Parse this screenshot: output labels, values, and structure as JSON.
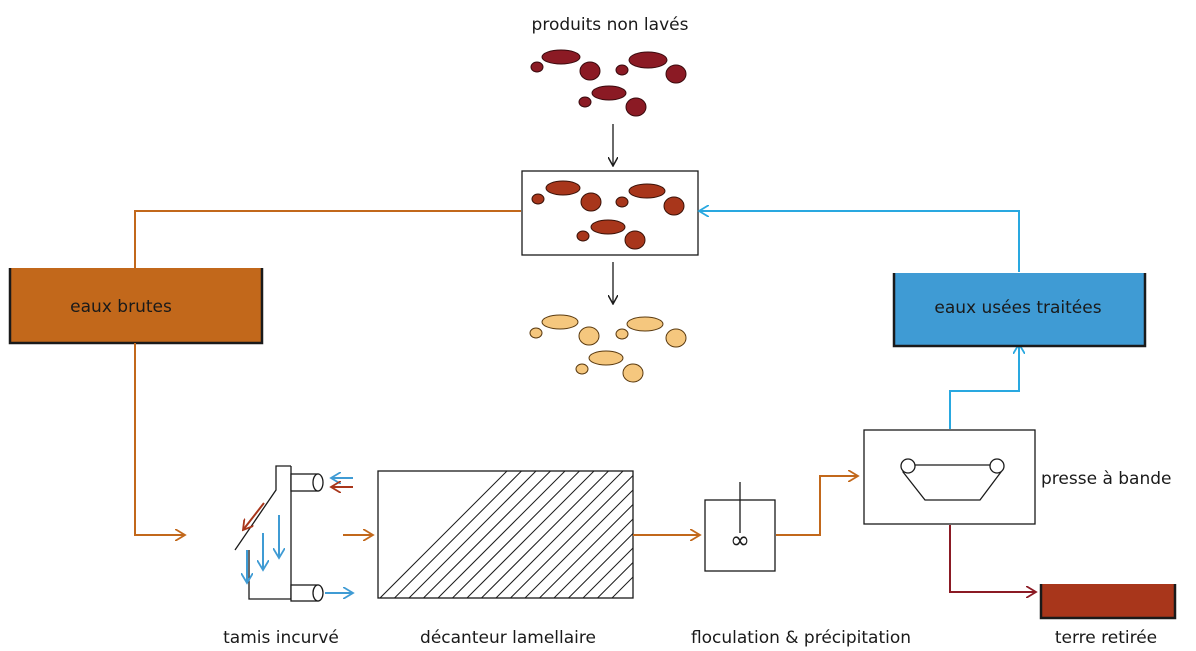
{
  "labels": {
    "unwashed_products": "produits non lavés",
    "raw_water": "eaux brutes",
    "treated_wastewater": "eaux usées traitées",
    "curved_screen": "tamis incurvé",
    "lamella_settler": "décanteur lamellaire",
    "flocculation": "floculation & précipitation",
    "belt_press": "presse à bande",
    "removed_soil": "terre retirée"
  },
  "mixer_symbol": "∞",
  "colors": {
    "soil_dark": "#8b1a24",
    "soil_wash": "#a8361b",
    "clean_product": "#f5c77e",
    "raw_water": "#c2681b",
    "treated_water": "#3f9bd4",
    "recycle_line": "#29a8e0",
    "sludge_line": "#8b1a24",
    "soil_tank": "#a8361b",
    "outline": "#1a1a1a"
  }
}
